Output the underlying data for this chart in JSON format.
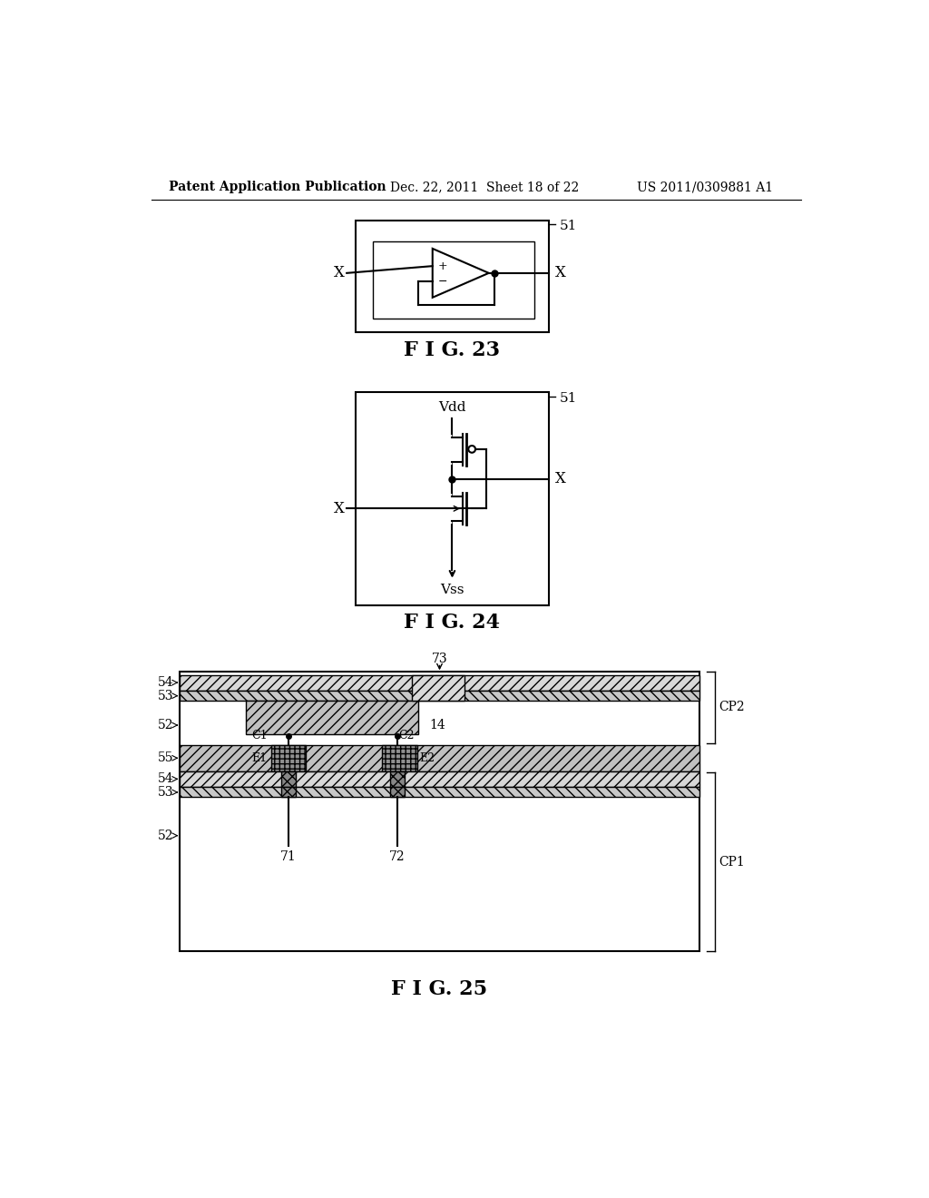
{
  "bg_color": "#ffffff",
  "header_left": "Patent Application Publication",
  "header_mid": "Dec. 22, 2011  Sheet 18 of 22",
  "header_right": "US 2011/0309881 A1",
  "fig23_caption": "F I G. 23",
  "fig24_caption": "F I G. 24",
  "fig25_caption": "F I G. 25"
}
